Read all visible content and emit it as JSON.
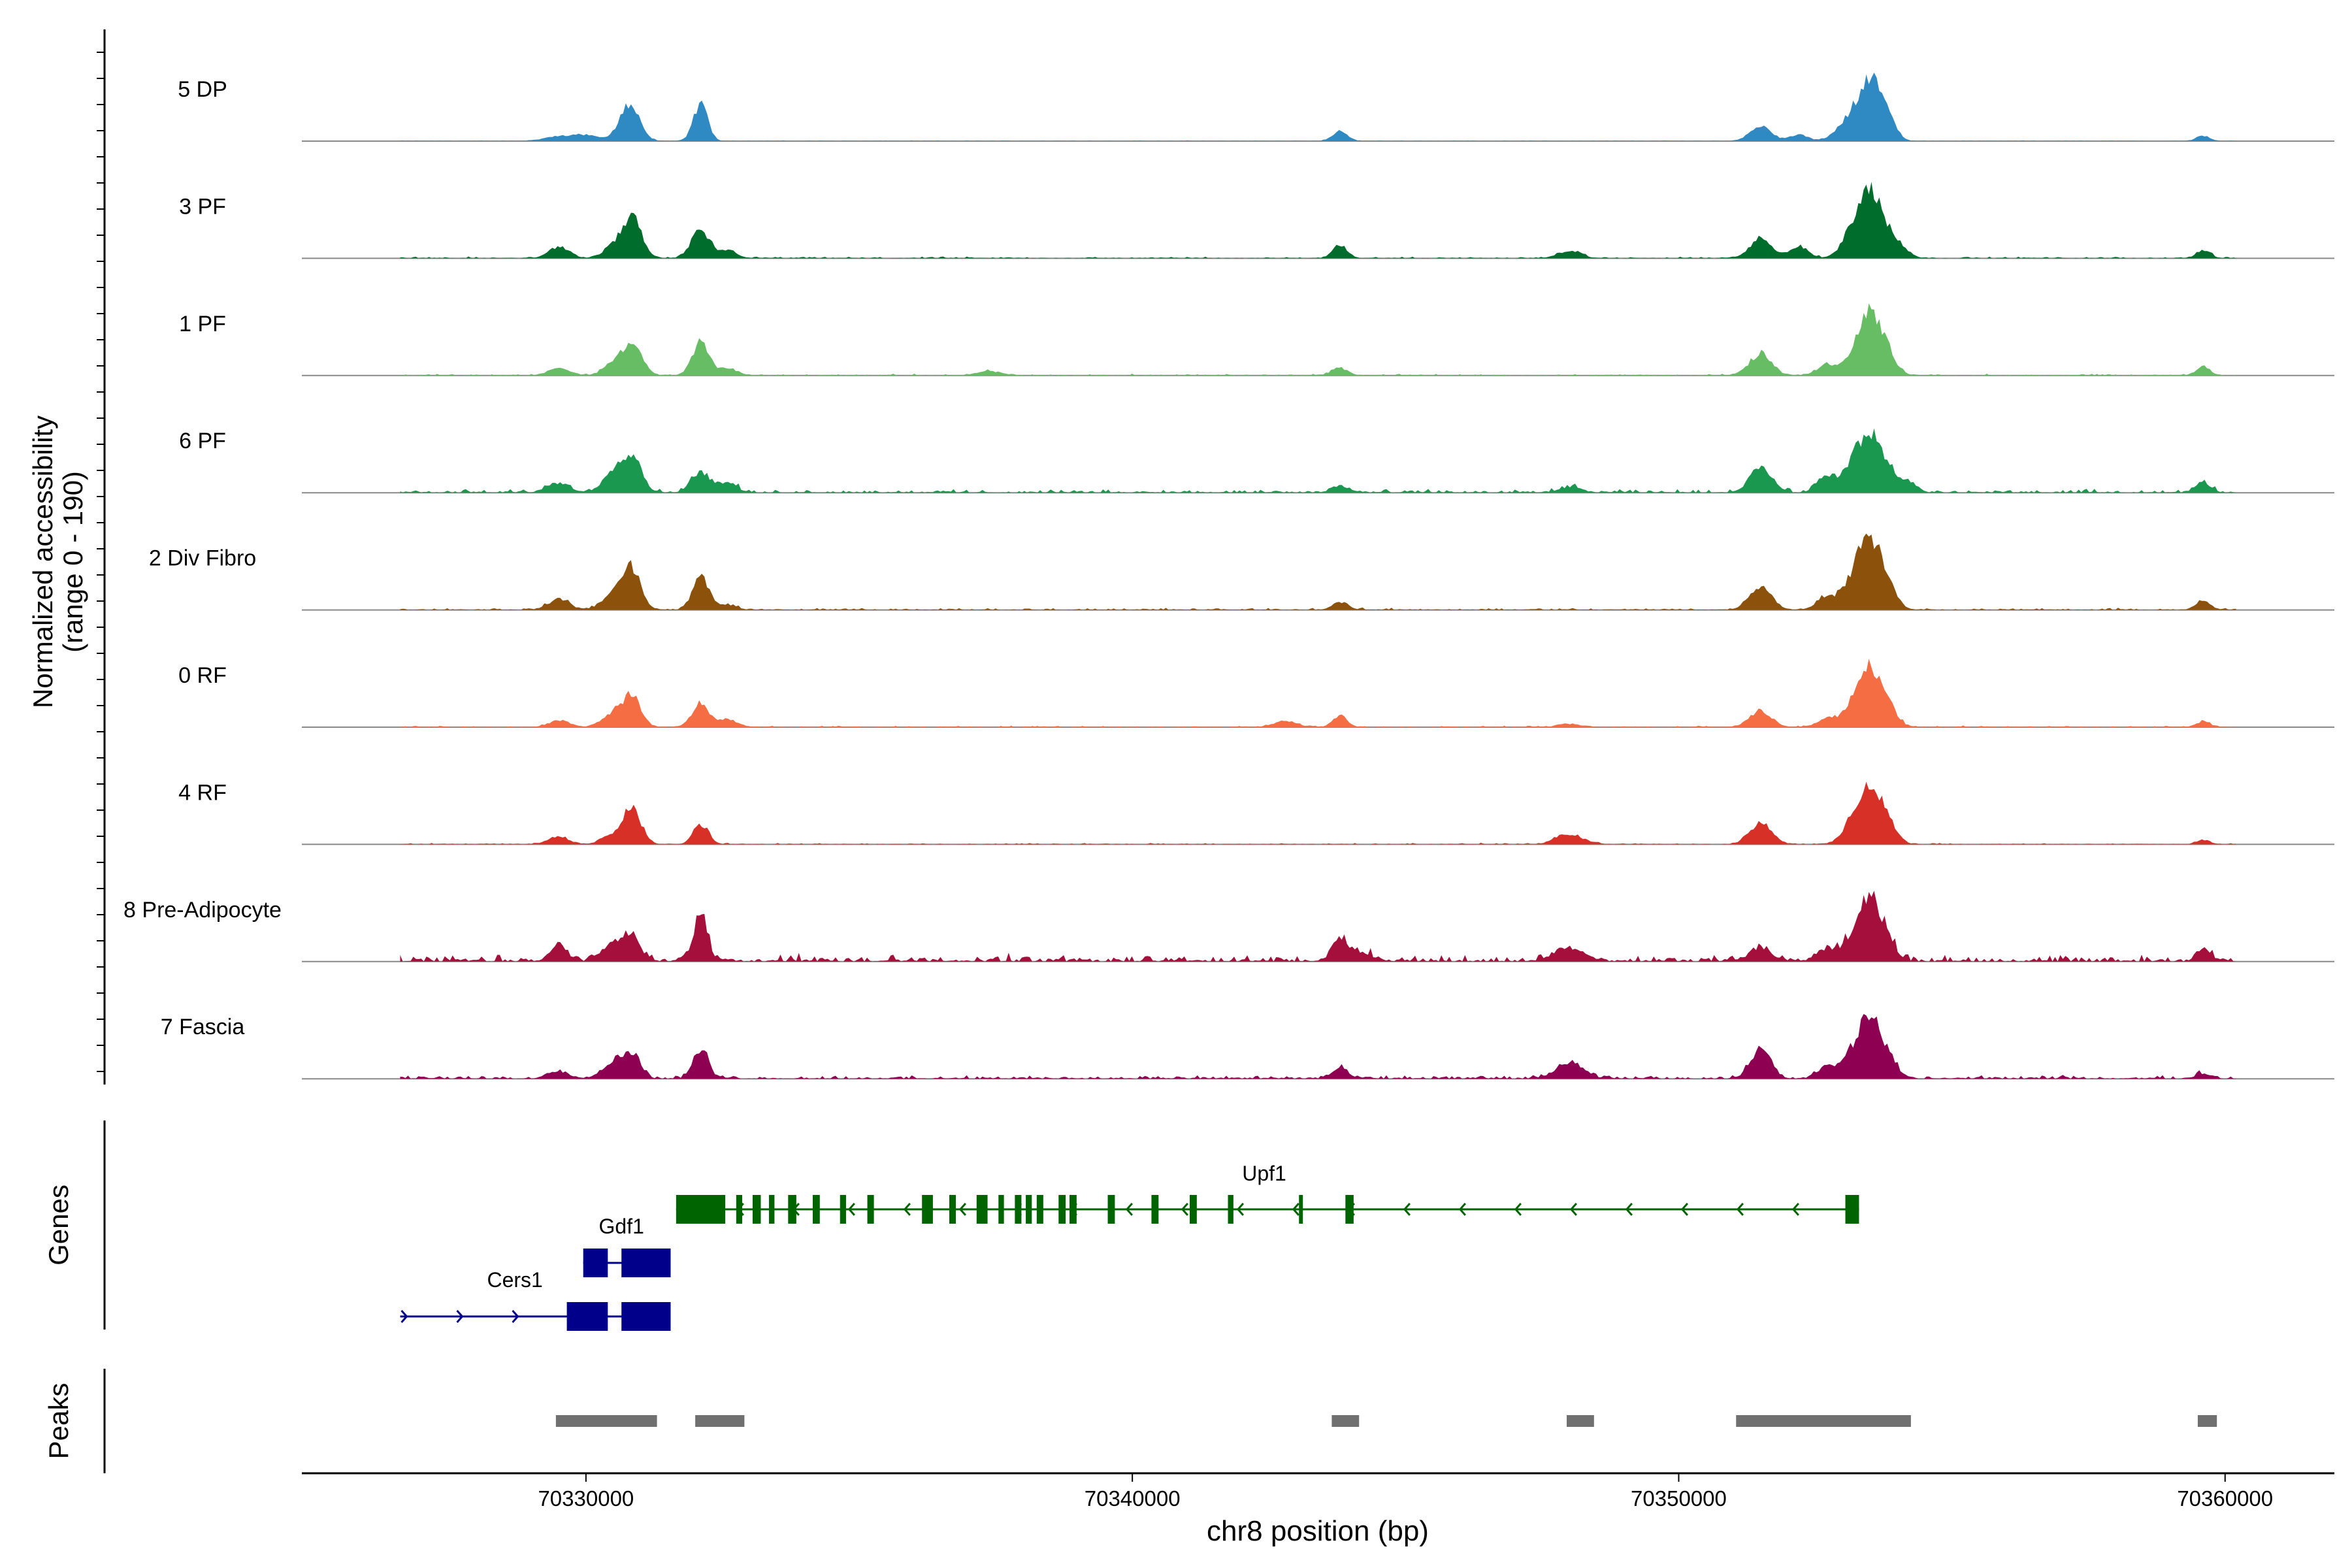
{
  "chart_data": {
    "type": "area",
    "title": "",
    "xlabel": "chr8 position (bp)",
    "ylabel": "Normalized accessibility",
    "ylabel_range": "(range 0 - 190)",
    "xlim": [
      70324800,
      70362000
    ],
    "ylim": [
      0,
      190
    ],
    "x_ticks": [
      70330000,
      70340000,
      70350000,
      70360000
    ],
    "x_tick_labels": [
      "70330000",
      "70340000",
      "70350000",
      "70360000"
    ],
    "data_start": 70326600,
    "data_end": 70360200,
    "series": [
      {
        "name": "5 DP",
        "color": "#2f8ac4",
        "noise": 0.5,
        "peaks": [
          [
            70329500,
            8,
            280
          ],
          [
            70330000,
            10,
            250
          ],
          [
            70330800,
            70,
            180
          ],
          [
            70332100,
            70,
            130
          ],
          [
            70343800,
            18,
            140
          ],
          [
            70351500,
            30,
            190
          ],
          [
            70352200,
            12,
            160
          ],
          [
            70353200,
            45,
            260
          ],
          [
            70353500,
            85,
            190
          ],
          [
            70353800,
            50,
            160
          ],
          [
            70359600,
            10,
            120
          ]
        ]
      },
      {
        "name": "3 PF",
        "color": "#006d2c",
        "noise": 1.2,
        "peaks": [
          [
            70329500,
            20,
            190
          ],
          [
            70330500,
            22,
            180
          ],
          [
            70330850,
            75,
            170
          ],
          [
            70332100,
            52,
            170
          ],
          [
            70332600,
            15,
            160
          ],
          [
            70343800,
            25,
            130
          ],
          [
            70348000,
            14,
            200
          ],
          [
            70351500,
            35,
            200
          ],
          [
            70352200,
            22,
            170
          ],
          [
            70353200,
            50,
            200
          ],
          [
            70353500,
            105,
            190
          ],
          [
            70353800,
            40,
            180
          ],
          [
            70354100,
            15,
            150
          ],
          [
            70359600,
            14,
            130
          ]
        ]
      },
      {
        "name": "1 PF",
        "color": "#66bd63",
        "noise": 1.2,
        "peaks": [
          [
            70329500,
            14,
            190
          ],
          [
            70330500,
            22,
            180
          ],
          [
            70330850,
            60,
            170
          ],
          [
            70332100,
            62,
            150
          ],
          [
            70332600,
            14,
            160
          ],
          [
            70337400,
            8,
            200
          ],
          [
            70343800,
            14,
            150
          ],
          [
            70351500,
            40,
            200
          ],
          [
            70352700,
            18,
            170
          ],
          [
            70353200,
            30,
            200
          ],
          [
            70353500,
            100,
            190
          ],
          [
            70353800,
            38,
            180
          ],
          [
            70359600,
            16,
            130
          ]
        ]
      },
      {
        "name": "6 PF",
        "color": "#1a9850",
        "noise": 2.5,
        "peaks": [
          [
            70329500,
            18,
            200
          ],
          [
            70330500,
            40,
            180
          ],
          [
            70330850,
            65,
            170
          ],
          [
            70332100,
            40,
            170
          ],
          [
            70332600,
            18,
            160
          ],
          [
            70343800,
            12,
            150
          ],
          [
            70348000,
            10,
            200
          ],
          [
            70351500,
            48,
            200
          ],
          [
            70352700,
            30,
            170
          ],
          [
            70353200,
            50,
            200
          ],
          [
            70353500,
            80,
            190
          ],
          [
            70353800,
            40,
            180
          ],
          [
            70354200,
            18,
            150
          ],
          [
            70359600,
            18,
            140
          ]
        ]
      },
      {
        "name": "2 Div Fibro",
        "color": "#8c510a",
        "noise": 1.5,
        "peaks": [
          [
            70329500,
            20,
            190
          ],
          [
            70330500,
            30,
            200
          ],
          [
            70330850,
            75,
            160
          ],
          [
            70332100,
            60,
            150
          ],
          [
            70332600,
            10,
            160
          ],
          [
            70343800,
            14,
            140
          ],
          [
            70351500,
            45,
            200
          ],
          [
            70352700,
            25,
            170
          ],
          [
            70353200,
            55,
            200
          ],
          [
            70353500,
            110,
            180
          ],
          [
            70353800,
            45,
            180
          ],
          [
            70359600,
            16,
            130
          ]
        ]
      },
      {
        "name": "0 RF",
        "color": "#f46d43",
        "noise": 1.0,
        "peaks": [
          [
            70329500,
            12,
            190
          ],
          [
            70330500,
            25,
            200
          ],
          [
            70330850,
            55,
            160
          ],
          [
            70332100,
            45,
            150
          ],
          [
            70332600,
            14,
            170
          ],
          [
            70342800,
            12,
            200
          ],
          [
            70343800,
            20,
            130
          ],
          [
            70348000,
            6,
            200
          ],
          [
            70351500,
            30,
            200
          ],
          [
            70352700,
            15,
            170
          ],
          [
            70353200,
            40,
            200
          ],
          [
            70353500,
            95,
            180
          ],
          [
            70353800,
            40,
            180
          ],
          [
            70359600,
            10,
            130
          ]
        ]
      },
      {
        "name": "4 RF",
        "color": "#d73027",
        "noise": 1.0,
        "peaks": [
          [
            70329500,
            14,
            190
          ],
          [
            70330500,
            18,
            200
          ],
          [
            70330850,
            65,
            160
          ],
          [
            70332100,
            38,
            140
          ],
          [
            70348000,
            18,
            250
          ],
          [
            70351500,
            40,
            200
          ],
          [
            70353200,
            40,
            200
          ],
          [
            70353500,
            95,
            180
          ],
          [
            70353800,
            40,
            180
          ],
          [
            70359600,
            8,
            130
          ]
        ]
      },
      {
        "name": "8 Pre-Adipocyte",
        "color": "#a50f3b",
        "noise": 5,
        "peaks": [
          [
            70329500,
            28,
            150
          ],
          [
            70330500,
            30,
            200
          ],
          [
            70330850,
            45,
            150
          ],
          [
            70332100,
            95,
            120
          ],
          [
            70343800,
            42,
            140
          ],
          [
            70344200,
            15,
            200
          ],
          [
            70348000,
            25,
            260
          ],
          [
            70351500,
            25,
            200
          ],
          [
            70352700,
            20,
            180
          ],
          [
            70353200,
            40,
            200
          ],
          [
            70353500,
            100,
            180
          ],
          [
            70353800,
            35,
            180
          ],
          [
            70359600,
            22,
            120
          ]
        ]
      },
      {
        "name": "7 Fascia",
        "color": "#8e0152",
        "noise": 2.5,
        "peaks": [
          [
            70329500,
            14,
            190
          ],
          [
            70330500,
            30,
            200
          ],
          [
            70330850,
            45,
            150
          ],
          [
            70332100,
            55,
            140
          ],
          [
            70343800,
            18,
            150
          ],
          [
            70348000,
            28,
            250
          ],
          [
            70351500,
            55,
            180
          ],
          [
            70352700,
            20,
            170
          ],
          [
            70353200,
            45,
            200
          ],
          [
            70353500,
            90,
            180
          ],
          [
            70353800,
            40,
            180
          ],
          [
            70359600,
            10,
            130
          ]
        ]
      }
    ],
    "genes_panel": {
      "label": "Genes",
      "genes": [
        {
          "name": "Upf1",
          "color": "#006400",
          "strand": "-",
          "start": 70331650,
          "end": 70353300,
          "exons": [
            [
              70331650,
              70332550
            ],
            [
              70332750,
              70332860
            ],
            [
              70333050,
              70333200
            ],
            [
              70333350,
              70333450
            ],
            [
              70333700,
              70333850
            ],
            [
              70334150,
              70334280
            ],
            [
              70334650,
              70334760
            ],
            [
              70335150,
              70335270
            ],
            [
              70336150,
              70336350
            ],
            [
              70336650,
              70336770
            ],
            [
              70337150,
              70337350
            ],
            [
              70337550,
              70337650
            ],
            [
              70337850,
              70337970
            ],
            [
              70338050,
              70338160
            ],
            [
              70338250,
              70338370
            ],
            [
              70338650,
              70338780
            ],
            [
              70338850,
              70338980
            ],
            [
              70339550,
              70339680
            ],
            [
              70340350,
              70340480
            ],
            [
              70341050,
              70341180
            ],
            [
              70341750,
              70341850
            ],
            [
              70343050,
              70343110
            ],
            [
              70343900,
              70344050
            ],
            [
              70353050,
              70353300
            ]
          ]
        },
        {
          "name": "Gdf1",
          "color": "#00008b",
          "strand": "+",
          "start": 70329950,
          "end": 70331550,
          "exons": [
            [
              70329950,
              70330400
            ],
            [
              70330650,
              70331550
            ]
          ]
        },
        {
          "name": "Cers1",
          "color": "#00008b",
          "strand": "+",
          "start": 70326600,
          "end": 70331550,
          "exons": [
            [
              70329650,
              70330400
            ],
            [
              70330650,
              70331550
            ]
          ]
        }
      ]
    },
    "peaks_panel": {
      "label": "Peaks",
      "color": "#707070",
      "regions": [
        [
          70329450,
          70331300
        ],
        [
          70332000,
          70332900
        ],
        [
          70343650,
          70344150
        ],
        [
          70347950,
          70348450
        ],
        [
          70351050,
          70354250
        ],
        [
          70359500,
          70359850
        ]
      ]
    }
  }
}
